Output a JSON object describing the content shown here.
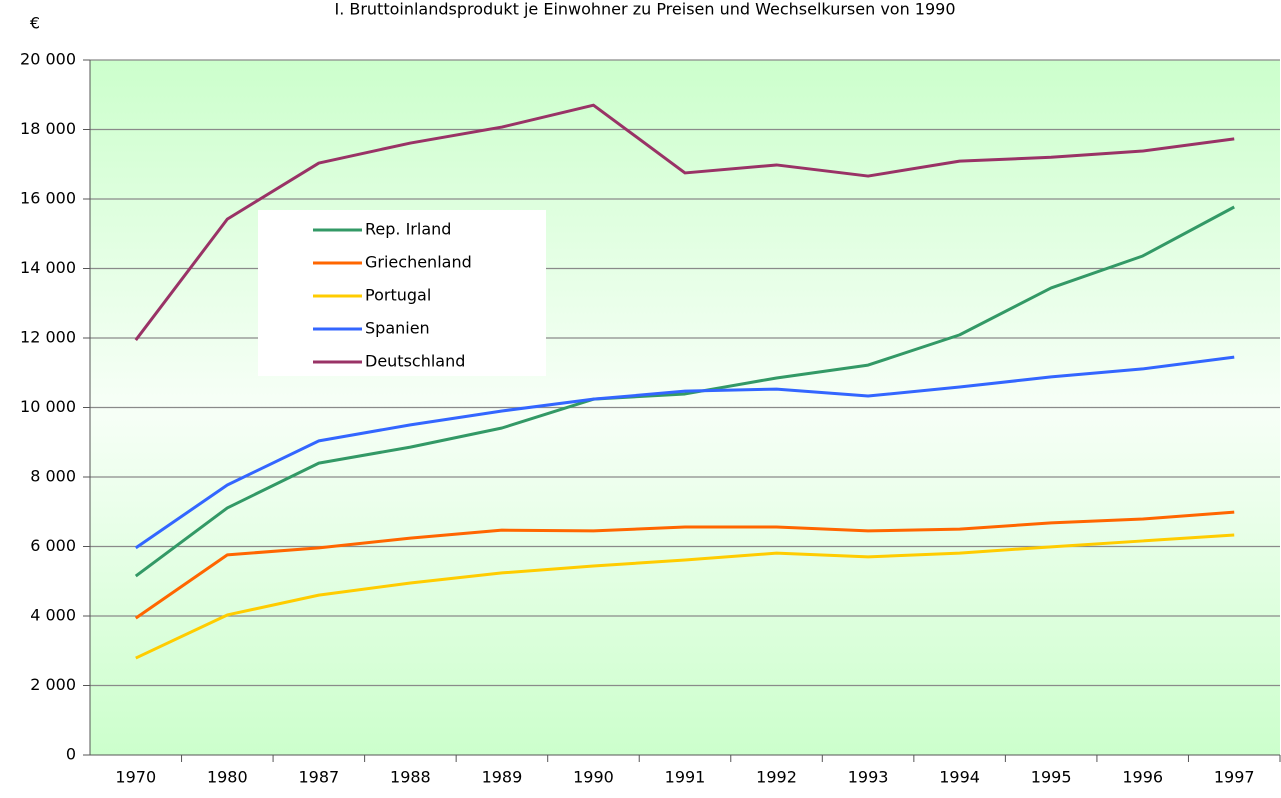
{
  "chart_data": {
    "type": "line",
    "title": "I. Bruttoinlandsprodukt je Einwohner zu Preisen und Wechselkursen von 1990",
    "ylabel": "€",
    "categories": [
      "1970",
      "1980",
      "1987",
      "1988",
      "1989",
      "1990",
      "1991",
      "1992",
      "1993",
      "1994",
      "1995",
      "1996",
      "1997"
    ],
    "series": [
      {
        "name": "Rep. Irland",
        "color": "#339966",
        "values": [
          5150,
          7110,
          8400,
          8860,
          9410,
          10240,
          10390,
          10850,
          11220,
          12090,
          13440,
          14360,
          15770
        ]
      },
      {
        "name": "Griechenland",
        "color": "#ff6600",
        "values": [
          3940,
          5760,
          5960,
          6240,
          6470,
          6450,
          6560,
          6560,
          6450,
          6500,
          6680,
          6790,
          6990
        ]
      },
      {
        "name": "Portugal",
        "color": "#ffcc00",
        "values": [
          2790,
          4030,
          4600,
          4950,
          5240,
          5440,
          5610,
          5810,
          5700,
          5810,
          5990,
          6160,
          6330
        ]
      },
      {
        "name": "Spanien",
        "color": "#3366ff",
        "values": [
          5960,
          7770,
          9040,
          9500,
          9900,
          10240,
          10470,
          10530,
          10330,
          10590,
          10880,
          11110,
          11450
        ]
      },
      {
        "name": "Deutschland",
        "color": "#993366",
        "values": [
          11940,
          15420,
          17035,
          17610,
          18070,
          18700,
          16750,
          16980,
          16660,
          17090,
          17200,
          17380,
          17730
        ]
      }
    ],
    "ylim": [
      0,
      20000
    ],
    "yticks": [
      0,
      {
        "value": 2000,
        "label": "2 000"
      },
      {
        "value": 4000,
        "label": "4 000"
      },
      {
        "value": 6000,
        "label": "6 000"
      },
      {
        "value": 8000,
        "label": "8 000"
      },
      {
        "value": 10000,
        "label": "10 000"
      },
      {
        "value": 12000,
        "label": "12 000"
      },
      {
        "value": 14000,
        "label": "14 000"
      },
      {
        "value": 16000,
        "label": "16 000"
      },
      {
        "value": 18000,
        "label": "18 000"
      },
      {
        "value": 20000,
        "label": "20 000"
      }
    ],
    "grid": true
  }
}
